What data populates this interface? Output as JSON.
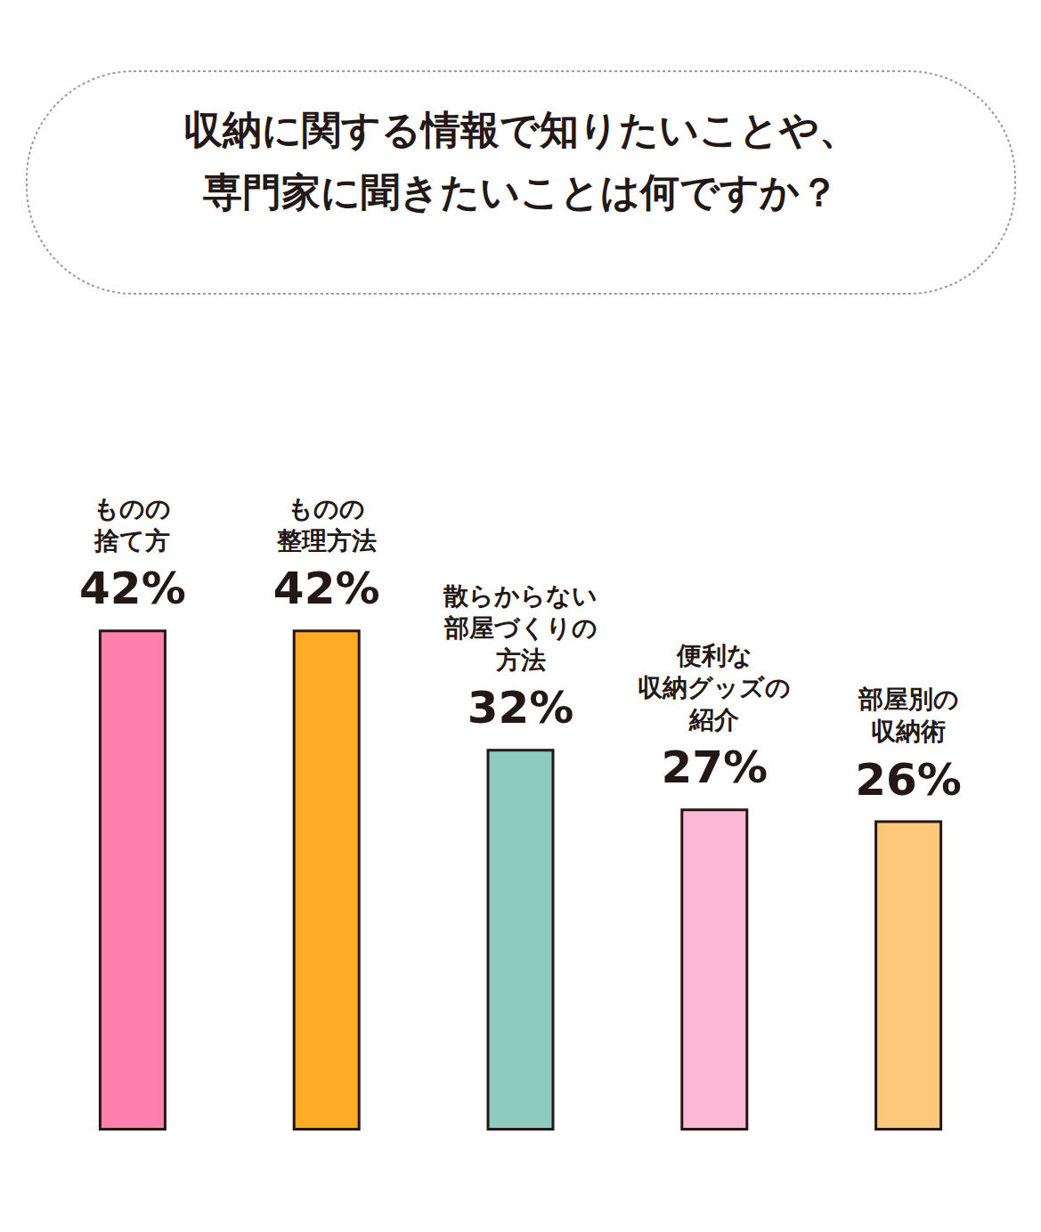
{
  "chart_data": {
    "type": "bar",
    "title": "収納に関する情報で知りたいことや、\n専門家に聞きたいことは何ですか？",
    "categories": [
      "ものの\n捨て方",
      "ものの\n整理方法",
      "散らからない\n部屋づくりの\n方法",
      "便利な\n収納グッズの\n紹介",
      "部屋別の\n収納術"
    ],
    "values": [
      42,
      42,
      32,
      27,
      26
    ],
    "value_labels": [
      "42%",
      "42%",
      "32%",
      "27%",
      "26%"
    ],
    "colors": [
      "#ff80ac",
      "#ffab25",
      "#8dcbc1",
      "#fdb8d6",
      "#fdc87a"
    ],
    "ylim": [
      0,
      50
    ],
    "data_labels": true,
    "tick_labels": false,
    "grid": false
  }
}
